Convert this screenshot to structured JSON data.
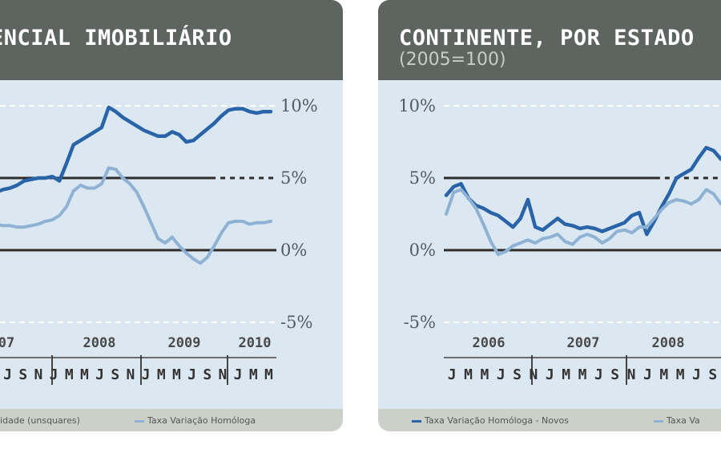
{
  "colors": {
    "header_bg": "#5e6460",
    "plot_bg": "#dbe8f1",
    "footer_bg": "#cbd1c9",
    "dark_series": "#2a64a8",
    "light_series": "#8fb2d4",
    "grid": "#2c2c2c"
  },
  "panels": [
    {
      "title": "ENCIAL IMOBILIÁRIO",
      "subtitle": "",
      "legend": [
        "ilidade (unsquares)",
        "Taxa Variação Homóloga"
      ]
    },
    {
      "title": "CONTINENTE, POR ESTADO",
      "subtitle": "(2005=100)",
      "legend": [
        "Taxa Variação Homóloga - Novos",
        "Taxa Va"
      ]
    }
  ],
  "chart_data": [
    {
      "type": "line",
      "ylim": [
        -5,
        10
      ],
      "y_tick_labels": [
        "10%",
        "5%",
        "0%",
        "-5%"
      ],
      "y_tick_values": [
        10,
        5,
        0,
        -5
      ],
      "year_labels": [
        "07",
        "2008",
        "2009",
        "2010"
      ],
      "month_labels": [
        "J",
        "S",
        "N",
        "J",
        "M",
        "M",
        "J",
        "S",
        "N",
        "J",
        "M",
        "M",
        "J",
        "S",
        "N",
        "J",
        "M",
        "M"
      ],
      "x": [
        0,
        1,
        2,
        3,
        4,
        5,
        6,
        7,
        8,
        9,
        10,
        11,
        12,
        13,
        14,
        15,
        16,
        17,
        18,
        19,
        20,
        21,
        22,
        23,
        24,
        25,
        26,
        27,
        28,
        29,
        30,
        31,
        32,
        33,
        34,
        35,
        36,
        37,
        38,
        39
      ],
      "series": [
        {
          "values": [
            4.0,
            4.2,
            4.3,
            4.5,
            4.8,
            4.9,
            5.0,
            5.0,
            5.1,
            4.8,
            6.0,
            7.3,
            7.6,
            7.9,
            8.2,
            8.5,
            9.9,
            9.6,
            9.2,
            8.9,
            8.6,
            8.3,
            8.1,
            7.9,
            7.9,
            8.2,
            8.0,
            7.5,
            7.6,
            8.0,
            8.4,
            8.8,
            9.3,
            9.7,
            9.8,
            9.8,
            9.6,
            9.5,
            9.6,
            9.6
          ]
        },
        {
          "values": [
            1.8,
            1.7,
            1.7,
            1.6,
            1.6,
            1.7,
            1.8,
            2.0,
            2.1,
            2.4,
            3.0,
            4.1,
            4.5,
            4.3,
            4.3,
            4.6,
            5.7,
            5.6,
            5.0,
            4.6,
            4.0,
            3.0,
            1.9,
            0.8,
            0.5,
            0.9,
            0.3,
            -0.2,
            -0.6,
            -0.9,
            -0.5,
            0.3,
            1.2,
            1.9,
            2.0,
            2.0,
            1.8,
            1.9,
            1.9,
            2.0
          ]
        }
      ]
    },
    {
      "type": "line",
      "ylim": [
        -5,
        10
      ],
      "y_tick_labels": [
        "10%",
        "5%",
        "0%",
        "-5%"
      ],
      "y_tick_values": [
        10,
        5,
        0,
        -5
      ],
      "year_labels": [
        "2006",
        "2007",
        "2008"
      ],
      "month_labels": [
        "J",
        "M",
        "M",
        "J",
        "S",
        "N",
        "J",
        "M",
        "M",
        "J",
        "S",
        "N",
        "J",
        "M",
        "M",
        "J",
        "S"
      ],
      "x": [
        0,
        1,
        2,
        3,
        4,
        5,
        6,
        7,
        8,
        9,
        10,
        11,
        12,
        13,
        14,
        15,
        16,
        17,
        18,
        19,
        20,
        21,
        22,
        23,
        24,
        25,
        26,
        27,
        28,
        29,
        30,
        31,
        32,
        33,
        34,
        35,
        36,
        37
      ],
      "series": [
        {
          "values": [
            3.8,
            4.4,
            4.6,
            3.6,
            3.1,
            2.9,
            2.6,
            2.4,
            2.0,
            1.6,
            2.2,
            3.5,
            1.6,
            1.4,
            1.8,
            2.2,
            1.8,
            1.7,
            1.5,
            1.6,
            1.5,
            1.3,
            1.5,
            1.7,
            1.9,
            2.4,
            2.6,
            1.1,
            2.0,
            3.0,
            3.9,
            5.0,
            5.3,
            5.6,
            6.4,
            7.1,
            6.9,
            6.3
          ]
        },
        {
          "values": [
            2.5,
            4.0,
            4.2,
            3.6,
            2.9,
            1.8,
            0.6,
            -0.3,
            -0.1,
            0.3,
            0.5,
            0.7,
            0.5,
            0.8,
            0.9,
            1.1,
            0.6,
            0.4,
            0.9,
            1.1,
            0.9,
            0.5,
            0.8,
            1.3,
            1.4,
            1.2,
            1.6,
            1.6,
            2.2,
            2.8,
            3.3,
            3.5,
            3.4,
            3.2,
            3.5,
            4.2,
            3.9,
            3.2
          ]
        }
      ]
    }
  ]
}
